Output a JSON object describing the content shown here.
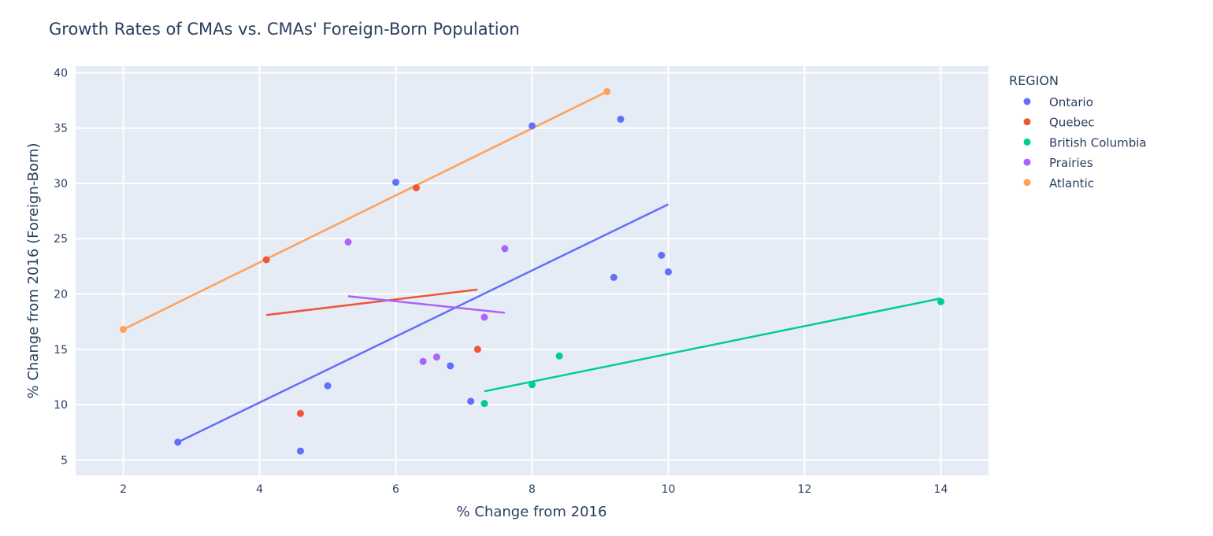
{
  "chart_data": {
    "type": "scatter",
    "title": "Growth Rates of CMAs vs. CMAs' Foreign-Born Population",
    "xlabel": "% Change from 2016",
    "ylabel": "% Change from 2016 (Foreign-Born)",
    "xlim": [
      1.3,
      14.7
    ],
    "ylim": [
      3.6,
      40.6
    ],
    "x_ticks": [
      2,
      4,
      6,
      8,
      10,
      12,
      14
    ],
    "y_ticks": [
      5,
      10,
      15,
      20,
      25,
      30,
      35,
      40
    ],
    "grid": true,
    "legend": {
      "title": "REGION",
      "placement": "right"
    },
    "series": [
      {
        "name": "Ontario",
        "color": "#636efa",
        "points": [
          [
            2.8,
            6.6
          ],
          [
            4.6,
            5.8
          ],
          [
            5.0,
            11.7
          ],
          [
            6.0,
            30.1
          ],
          [
            6.8,
            13.5
          ],
          [
            7.1,
            10.3
          ],
          [
            8.0,
            35.2
          ],
          [
            9.2,
            21.5
          ],
          [
            9.3,
            35.8
          ],
          [
            9.9,
            23.5
          ],
          [
            10.0,
            22.0
          ]
        ],
        "trendline": [
          [
            2.8,
            6.6
          ],
          [
            10.0,
            28.1
          ]
        ]
      },
      {
        "name": "Quebec",
        "color": "#ef553b",
        "points": [
          [
            4.1,
            23.1
          ],
          [
            4.6,
            9.2
          ],
          [
            6.3,
            29.6
          ],
          [
            7.2,
            15.0
          ]
        ],
        "trendline": [
          [
            4.1,
            18.1
          ],
          [
            7.2,
            20.4
          ]
        ]
      },
      {
        "name": "British Columbia",
        "color": "#00cc96",
        "points": [
          [
            7.3,
            10.1
          ],
          [
            8.0,
            11.8
          ],
          [
            8.4,
            14.4
          ],
          [
            14.0,
            19.3
          ]
        ],
        "trendline": [
          [
            7.3,
            11.2
          ],
          [
            14.0,
            19.6
          ]
        ]
      },
      {
        "name": "Prairies",
        "color": "#ab63fa",
        "points": [
          [
            5.3,
            24.7
          ],
          [
            6.4,
            13.9
          ],
          [
            6.6,
            14.3
          ],
          [
            7.3,
            17.9
          ],
          [
            7.6,
            24.1
          ]
        ],
        "trendline": [
          [
            5.3,
            19.8
          ],
          [
            7.6,
            18.3
          ]
        ]
      },
      {
        "name": "Atlantic",
        "color": "#ffa15a",
        "points": [
          [
            2.0,
            16.8
          ],
          [
            9.1,
            38.3
          ]
        ],
        "trendline": [
          [
            2.0,
            16.8
          ],
          [
            9.1,
            38.3
          ]
        ]
      }
    ]
  }
}
